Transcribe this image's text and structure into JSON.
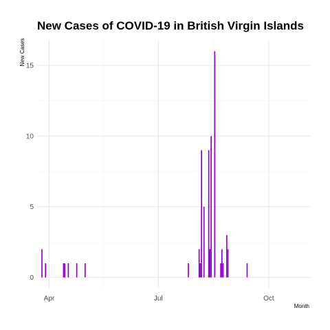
{
  "chart_data": {
    "type": "bar",
    "title": "New Cases of COVID-19 in British Virgin Islands",
    "xlabel": "Month",
    "ylabel": "New Cases",
    "x_ticks": [
      "Apr",
      "Jul",
      "Oct"
    ],
    "y_ticks": [
      0,
      5,
      10,
      15
    ],
    "ylim": [
      -0.8,
      16.8
    ],
    "xlim": [
      "2020-03-22",
      "2020-11-05"
    ],
    "grid": true,
    "bar_color": "#9400d3",
    "x": [
      "2020-03-26",
      "2020-03-29",
      "2020-04-13",
      "2020-04-14",
      "2020-04-17",
      "2020-04-24",
      "2020-05-01",
      "2020-07-26",
      "2020-08-04",
      "2020-08-05",
      "2020-08-06",
      "2020-08-08",
      "2020-08-12",
      "2020-08-13",
      "2020-08-14",
      "2020-08-17",
      "2020-08-22",
      "2020-08-23",
      "2020-08-24",
      "2020-08-27",
      "2020-08-28",
      "2020-09-13"
    ],
    "values": [
      2,
      1,
      1,
      1,
      1,
      1,
      1,
      1,
      2,
      1,
      9,
      5,
      9,
      2,
      10,
      16,
      1,
      2,
      1,
      3,
      2,
      1
    ]
  }
}
